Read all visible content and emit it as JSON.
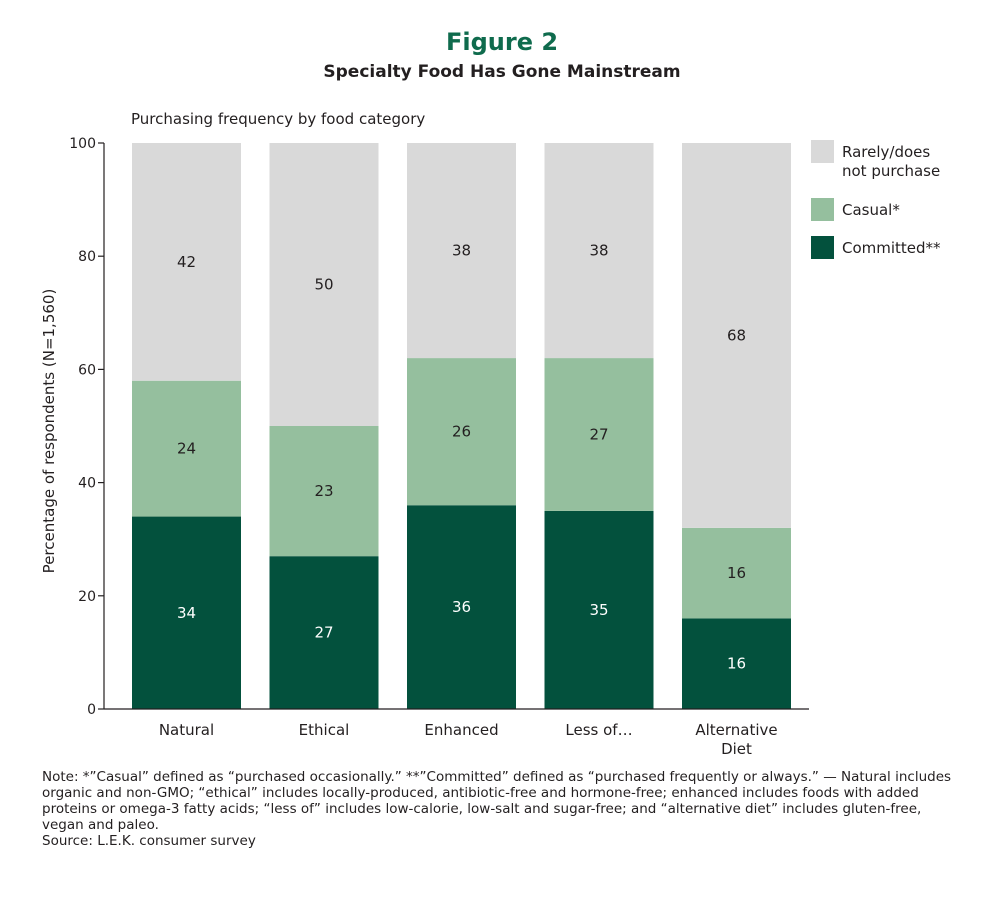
{
  "figure_label": "Figure 2",
  "colors": {
    "committed": "#03513d",
    "casual": "#95bf9e",
    "rarely": "#d9d9d9",
    "accent": "#0f6b4d",
    "axis": "#231f20"
  },
  "chart_data": {
    "type": "bar",
    "stacked": true,
    "title": "Specialty Food Has Gone Mainstream",
    "subtitle": "Purchasing frequency by food category",
    "xlabel": "",
    "ylabel": "Percentage of respondents (N=1,560)",
    "ylim": [
      0,
      100
    ],
    "yticks": [
      0,
      20,
      40,
      60,
      80,
      100
    ],
    "grid": false,
    "legend_position": "right",
    "categories": [
      "Natural",
      "Ethical",
      "Enhanced",
      "Less of…",
      "Alternative Diet"
    ],
    "category_lines": [
      [
        "Natural"
      ],
      [
        "Ethical"
      ],
      [
        "Enhanced"
      ],
      [
        "Less of…"
      ],
      [
        "Alternative",
        "Diet"
      ]
    ],
    "series": [
      {
        "name": "Committed**",
        "key": "committed",
        "values": [
          34,
          27,
          36,
          35,
          16
        ]
      },
      {
        "name": "Casual*",
        "key": "casual",
        "values": [
          24,
          23,
          26,
          27,
          16
        ]
      },
      {
        "name": "Rarely/does not purchase",
        "key": "rarely",
        "values": [
          42,
          50,
          38,
          38,
          68
        ]
      }
    ]
  },
  "legend": [
    {
      "key": "rarely",
      "label": "Rarely/does\nnot purchase"
    },
    {
      "key": "casual",
      "label": "Casual*"
    },
    {
      "key": "committed",
      "label": "Committed**"
    }
  ],
  "footnote": {
    "note": "Note: *”Casual” defined as “purchased occasionally.” **”Committed” defined as “purchased frequently or always.” — Natural includes organic and non-GMO; “ethical” includes locally-produced, antibiotic-free and hormone-free; enhanced includes foods with added proteins or omega-3 fatty acids; “less of” includes low-calorie, low-salt and sugar-free; and “alternative diet” includes gluten-free, vegan and paleo.",
    "source": "Source: L.E.K. consumer survey"
  }
}
